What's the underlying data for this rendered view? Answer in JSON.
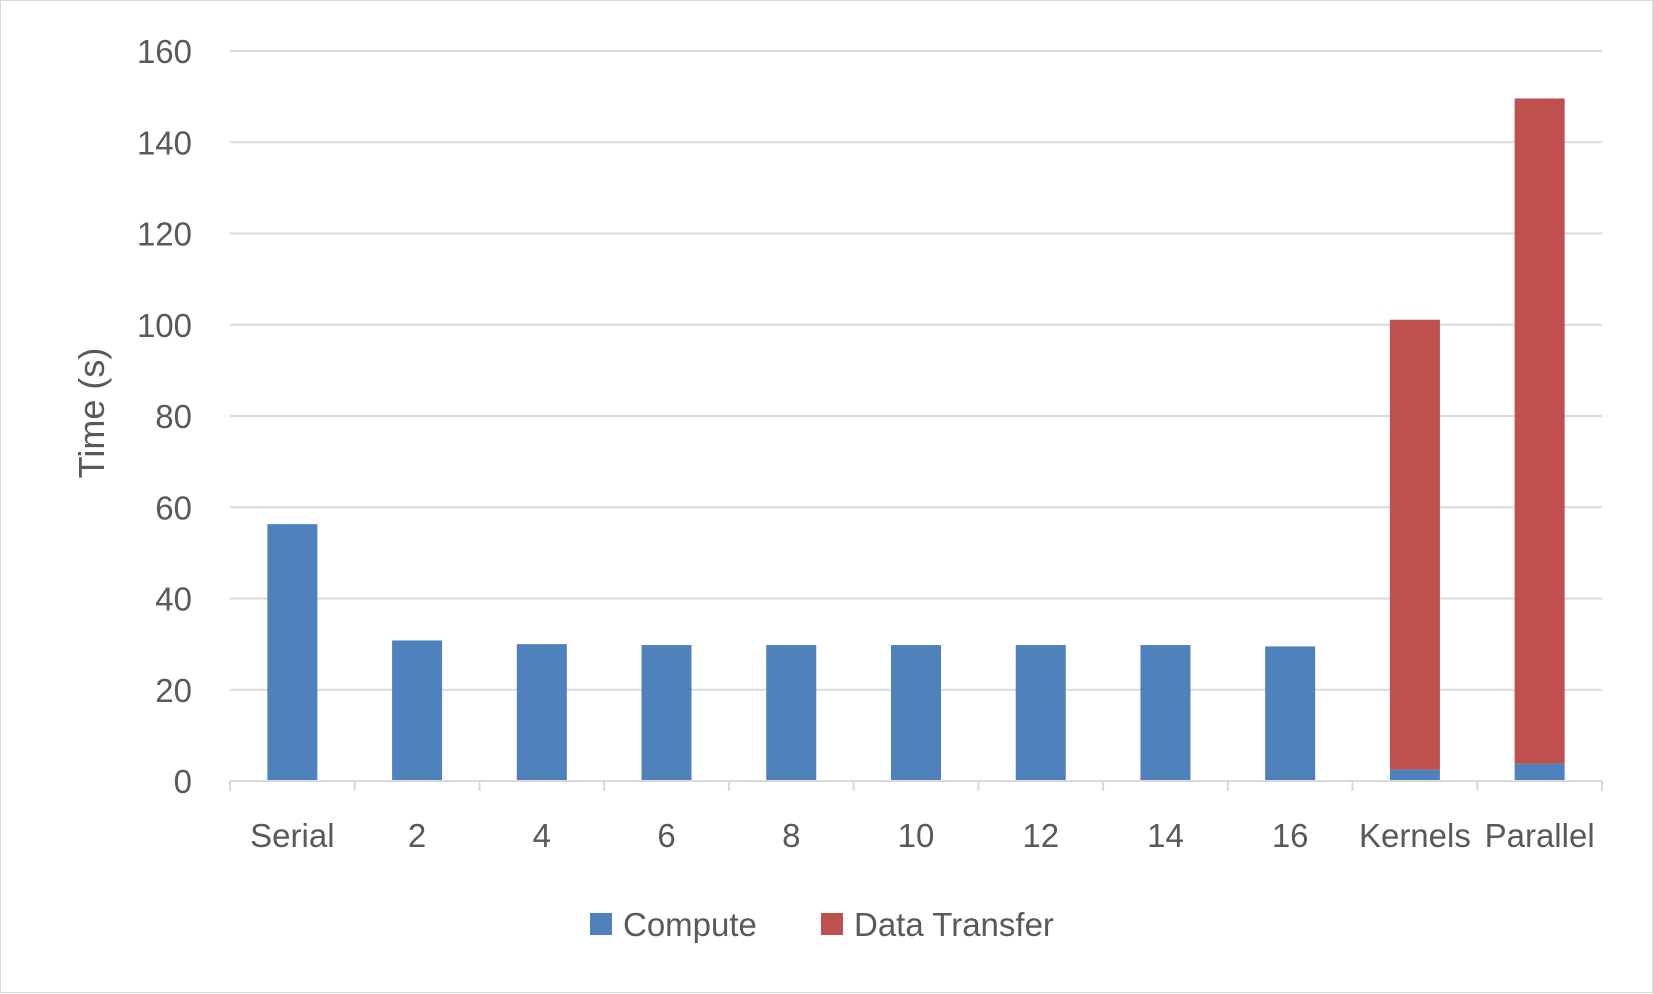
{
  "chart_data": {
    "type": "bar",
    "stacked": true,
    "ylabel": "Time (s)",
    "ylim": [
      0,
      160
    ],
    "yticks": [
      0,
      20,
      40,
      60,
      80,
      100,
      120,
      140,
      160
    ],
    "categories": [
      "Serial",
      "2",
      "4",
      "6",
      "8",
      "10",
      "12",
      "14",
      "16",
      "Kernels",
      "Parallel"
    ],
    "series": [
      {
        "name": "Compute",
        "color": "#4f81bd",
        "values": [
          56.3,
          30.8,
          30.0,
          29.8,
          29.8,
          29.8,
          29.8,
          29.8,
          29.5,
          2.5,
          3.8
        ]
      },
      {
        "name": "Data Transfer",
        "color": "#c0504d",
        "values": [
          0,
          0,
          0,
          0,
          0,
          0,
          0,
          0,
          0,
          98.6,
          145.8
        ]
      }
    ],
    "grid": true,
    "legend": "bottom"
  }
}
